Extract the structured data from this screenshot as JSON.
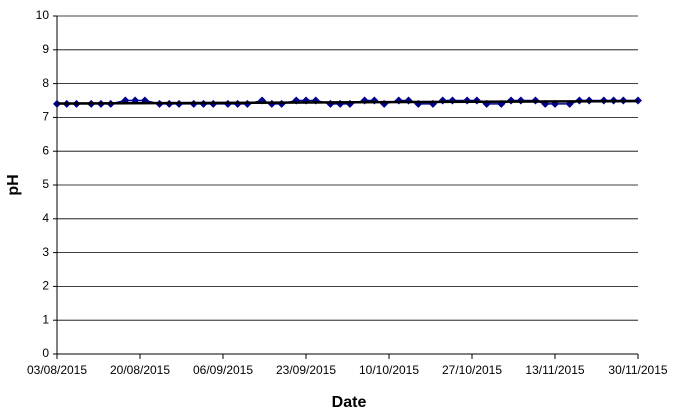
{
  "chart_data": {
    "type": "line",
    "x_label": "Date",
    "y_label": "pH",
    "x": [
      "03/08/2015",
      "05/08/2015",
      "07/08/2015",
      "10/08/2015",
      "12/08/2015",
      "14/08/2015",
      "17/08/2015",
      "19/08/2015",
      "21/08/2015",
      "24/08/2015",
      "26/08/2015",
      "28/08/2015",
      "31/08/2015",
      "02/09/2015",
      "04/09/2015",
      "07/09/2015",
      "09/09/2015",
      "11/09/2015",
      "14/09/2015",
      "16/09/2015",
      "18/09/2015",
      "21/09/2015",
      "23/09/2015",
      "25/09/2015",
      "28/09/2015",
      "30/09/2015",
      "02/10/2015",
      "05/10/2015",
      "07/10/2015",
      "09/10/2015",
      "12/10/2015",
      "14/10/2015",
      "16/10/2015",
      "19/10/2015",
      "21/10/2015",
      "23/10/2015",
      "26/10/2015",
      "28/10/2015",
      "30/10/2015",
      "02/11/2015",
      "04/11/2015",
      "06/11/2015",
      "09/11/2015",
      "11/11/2015",
      "13/11/2015",
      "16/11/2015",
      "18/11/2015",
      "20/11/2015",
      "23/11/2015",
      "25/11/2015",
      "27/11/2015",
      "30/11/2015"
    ],
    "series": [
      {
        "color": "#00008b",
        "values": [
          7.4,
          7.4,
          7.4,
          7.4,
          7.4,
          7.4,
          7.5,
          7.5,
          7.5,
          7.4,
          7.4,
          7.4,
          7.4,
          7.4,
          7.4,
          7.4,
          7.4,
          7.4,
          7.5,
          7.4,
          7.4,
          7.5,
          7.5,
          7.5,
          7.4,
          7.4,
          7.4,
          7.5,
          7.5,
          7.4,
          7.5,
          7.5,
          7.4,
          7.4,
          7.5,
          7.5,
          7.5,
          7.5,
          7.4,
          7.4,
          7.5,
          7.5,
          7.5,
          7.4,
          7.4,
          7.4,
          7.5,
          7.5,
          7.5,
          7.5,
          7.5,
          7.5
        ]
      }
    ],
    "trendline": true,
    "trendline_color": "#000000",
    "xlim": [
      "03/08/2015",
      "30/11/2015"
    ],
    "xticks": [
      "03/08/2015",
      "20/08/2015",
      "06/09/2015",
      "23/09/2015",
      "10/10/2015",
      "27/10/2015",
      "13/11/2015",
      "30/11/2015"
    ],
    "ylim": [
      0,
      10
    ],
    "yticks": [
      0,
      1,
      2,
      3,
      4,
      5,
      6,
      7,
      8,
      9,
      10
    ],
    "grid": true
  }
}
